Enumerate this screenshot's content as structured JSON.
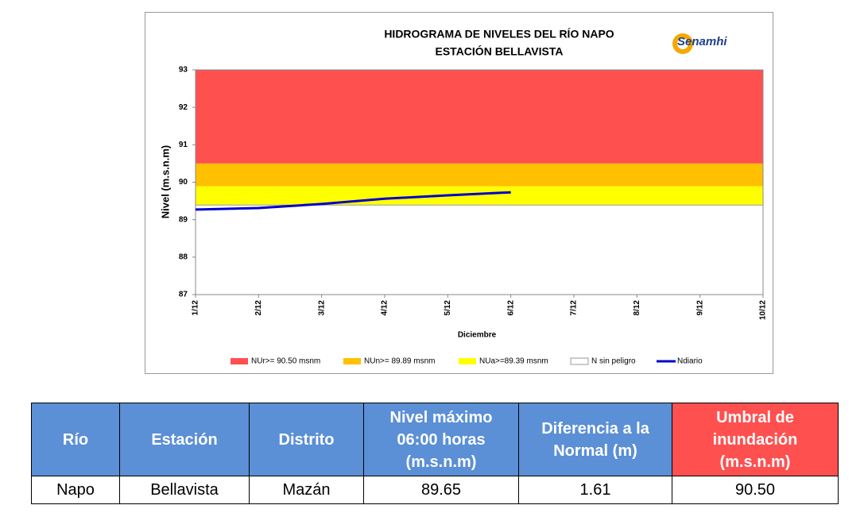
{
  "chart_data": {
    "type": "line",
    "title": "HIDROGRAMA DE NIVELES DEL RÍO NAPO",
    "subtitle": "ESTACIÓN BELLAVISTA",
    "logo": "Senamhi",
    "x_label": "Diciembre",
    "y_label": "Nivel (m.s.n.m)",
    "categories": [
      "1/12",
      "2/12",
      "3/12",
      "4/12",
      "5/12",
      "6/12",
      "7/12",
      "8/12",
      "9/12",
      "10/12"
    ],
    "ylim": [
      87,
      93
    ],
    "yticks": [
      87,
      88,
      89,
      90,
      91,
      92,
      93
    ],
    "series": [
      {
        "name": "NUr>= 90.50 msnm",
        "color": "#ff5050",
        "threshold": 90.5
      },
      {
        "name": "NUn>= 89.89 msnm",
        "color": "#ffc000",
        "threshold": 89.89
      },
      {
        "name": "NUa>=89.39 msnm",
        "color": "#ffff00",
        "threshold": 89.39
      },
      {
        "name": "N sin peligro",
        "color": "#ffffff"
      },
      {
        "name": "Ndiario",
        "color": "#0000cc",
        "values": [
          89.27,
          89.31,
          89.42,
          89.56,
          89.65,
          89.73,
          null,
          null,
          null,
          null
        ]
      }
    ]
  },
  "table": {
    "headers": [
      "Río",
      "Estación",
      "Distrito",
      "Nivel máximo 06:00 horas (m.s.n.m)",
      "Diferencia a la Normal (m)",
      "Umbral de inundación (m.s.n.m)"
    ],
    "rows": [
      [
        "Napo",
        "Bellavista",
        "Mazán",
        "89.65",
        "1.61",
        "90.50"
      ]
    ]
  }
}
